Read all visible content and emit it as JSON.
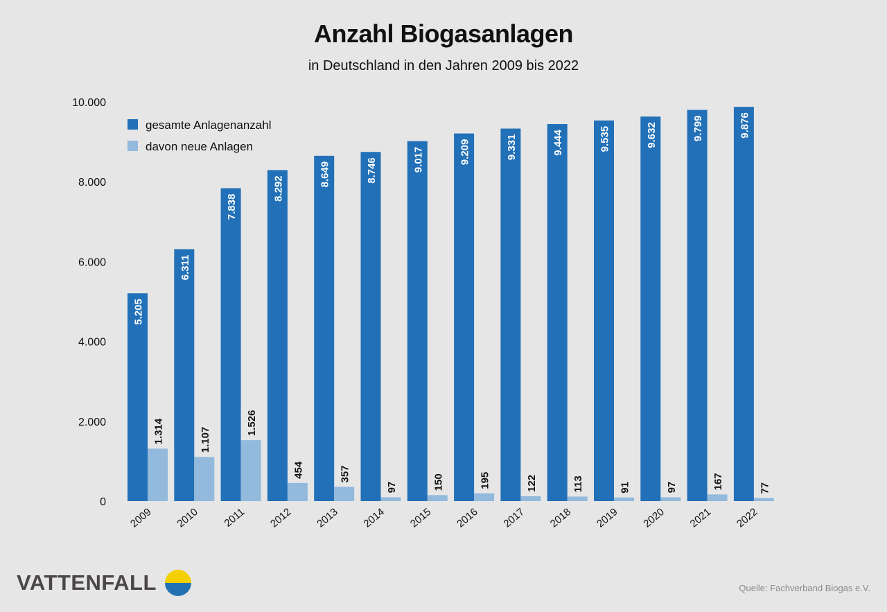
{
  "chart_data": {
    "type": "bar",
    "title": "Anzahl Biogasanlagen",
    "subtitle": "in Deutschland in den Jahren 2009 bis 2022",
    "categories": [
      "2009",
      "2010",
      "2011",
      "2012",
      "2013",
      "2014",
      "2015",
      "2016",
      "2017",
      "2018",
      "2019",
      "2020",
      "2021",
      "2022"
    ],
    "series": [
      {
        "name": "gesamte Anlagenanzahl",
        "color": "#2271b8",
        "values": [
          5205,
          6311,
          7838,
          8292,
          8649,
          8746,
          9017,
          9209,
          9331,
          9444,
          9535,
          9632,
          9799,
          9876
        ],
        "labels": [
          "5.205",
          "6.311",
          "7.838",
          "8.292",
          "8.649",
          "8.746",
          "9.017",
          "9.209",
          "9.331",
          "9.444",
          "9.535",
          "9.632",
          "9.799",
          "9.876"
        ]
      },
      {
        "name": "davon neue Anlagen",
        "color": "#93b9dc",
        "values": [
          1314,
          1107,
          1526,
          454,
          357,
          97,
          150,
          195,
          122,
          113,
          91,
          97,
          167,
          77
        ],
        "labels": [
          "1.314",
          "1.107",
          "1.526",
          "454",
          "357",
          "97",
          "150",
          "195",
          "122",
          "113",
          "91",
          "97",
          "167",
          "77"
        ]
      }
    ],
    "yticks": [
      0,
      2000,
      4000,
      6000,
      8000,
      10000
    ],
    "ytick_labels": [
      "0",
      "2.000",
      "4.000",
      "6.000",
      "8.000",
      "10.000"
    ],
    "ylim": [
      0,
      10000
    ],
    "grid": false,
    "legend": "top-left"
  },
  "source": "Quelle: Fachverband Biogas e.V.",
  "logo": "VATTENFALL"
}
